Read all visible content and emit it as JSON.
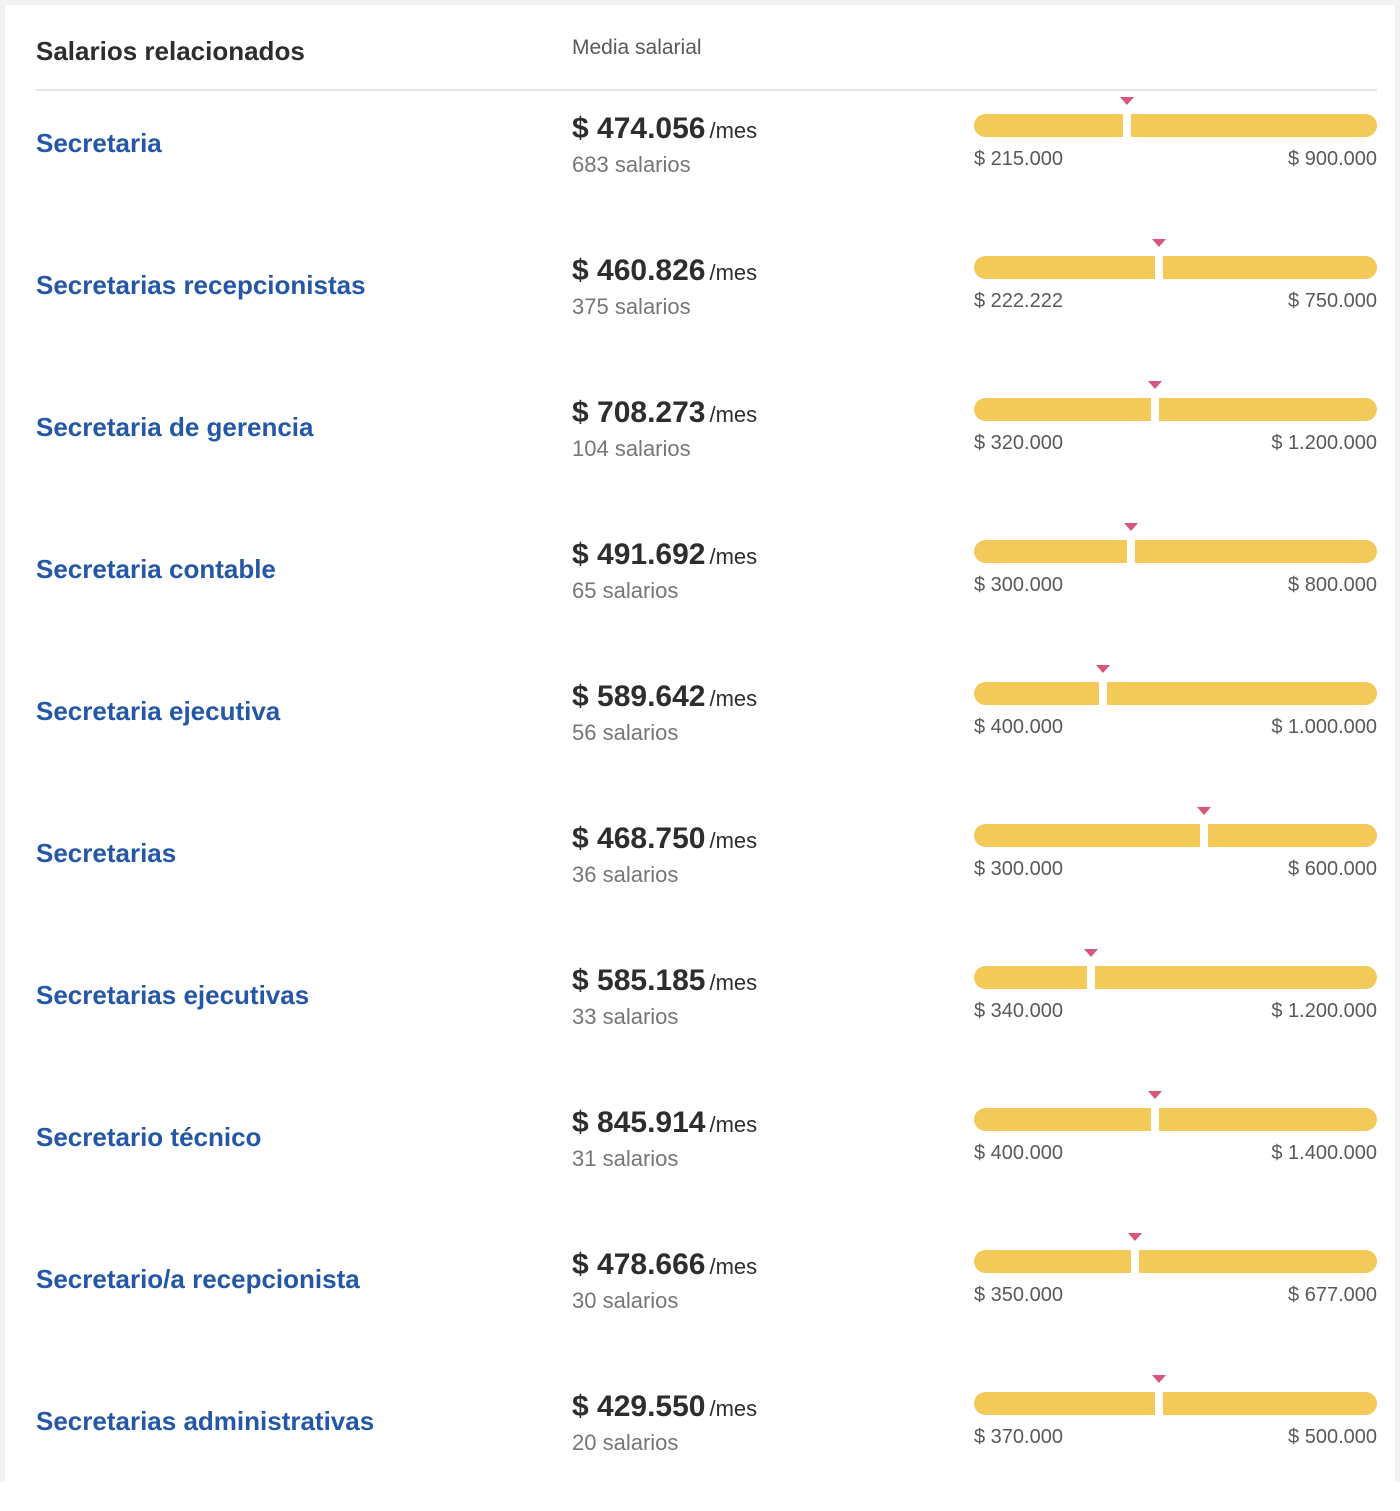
{
  "header": {
    "title": "Salarios relacionados",
    "column_label": "Media salarial"
  },
  "colors": {
    "link": "#2557a7",
    "bar": "#f3c95a",
    "marker": "#d6577a"
  },
  "rows": [
    {
      "title": "Secretaria",
      "amount": "$ 474.056",
      "period": "/mes",
      "count": "683 salarios",
      "min": "$ 215.000",
      "max": "$ 900.000",
      "position": 0.38
    },
    {
      "title": "Secretarias recepcionistas",
      "amount": "$ 460.826",
      "period": "/mes",
      "count": "375 salarios",
      "min": "$ 222.222",
      "max": "$ 750.000",
      "position": 0.46
    },
    {
      "title": "Secretaria de gerencia",
      "amount": "$ 708.273",
      "period": "/mes",
      "count": "104 salarios",
      "min": "$ 320.000",
      "max": "$ 1.200.000",
      "position": 0.45
    },
    {
      "title": "Secretaria contable",
      "amount": "$ 491.692",
      "period": "/mes",
      "count": "65 salarios",
      "min": "$ 300.000",
      "max": "$ 800.000",
      "position": 0.39
    },
    {
      "title": "Secretaria ejecutiva",
      "amount": "$ 589.642",
      "period": "/mes",
      "count": "56 salarios",
      "min": "$ 400.000",
      "max": "$ 1.000.000",
      "position": 0.32
    },
    {
      "title": "Secretarias",
      "amount": "$ 468.750",
      "period": "/mes",
      "count": "36 salarios",
      "min": "$ 300.000",
      "max": "$ 600.000",
      "position": 0.57
    },
    {
      "title": "Secretarias ejecutivas",
      "amount": "$ 585.185",
      "period": "/mes",
      "count": "33 salarios",
      "min": "$ 340.000",
      "max": "$ 1.200.000",
      "position": 0.29
    },
    {
      "title": "Secretario técnico",
      "amount": "$ 845.914",
      "period": "/mes",
      "count": "31 salarios",
      "min": "$ 400.000",
      "max": "$ 1.400.000",
      "position": 0.45
    },
    {
      "title": "Secretario/a recepcionista",
      "amount": "$ 478.666",
      "period": "/mes",
      "count": "30 salarios",
      "min": "$ 350.000",
      "max": "$ 677.000",
      "position": 0.4
    },
    {
      "title": "Secretarias administrativas",
      "amount": "$ 429.550",
      "period": "/mes",
      "count": "20 salarios",
      "min": "$ 370.000",
      "max": "$ 500.000",
      "position": 0.46
    }
  ]
}
